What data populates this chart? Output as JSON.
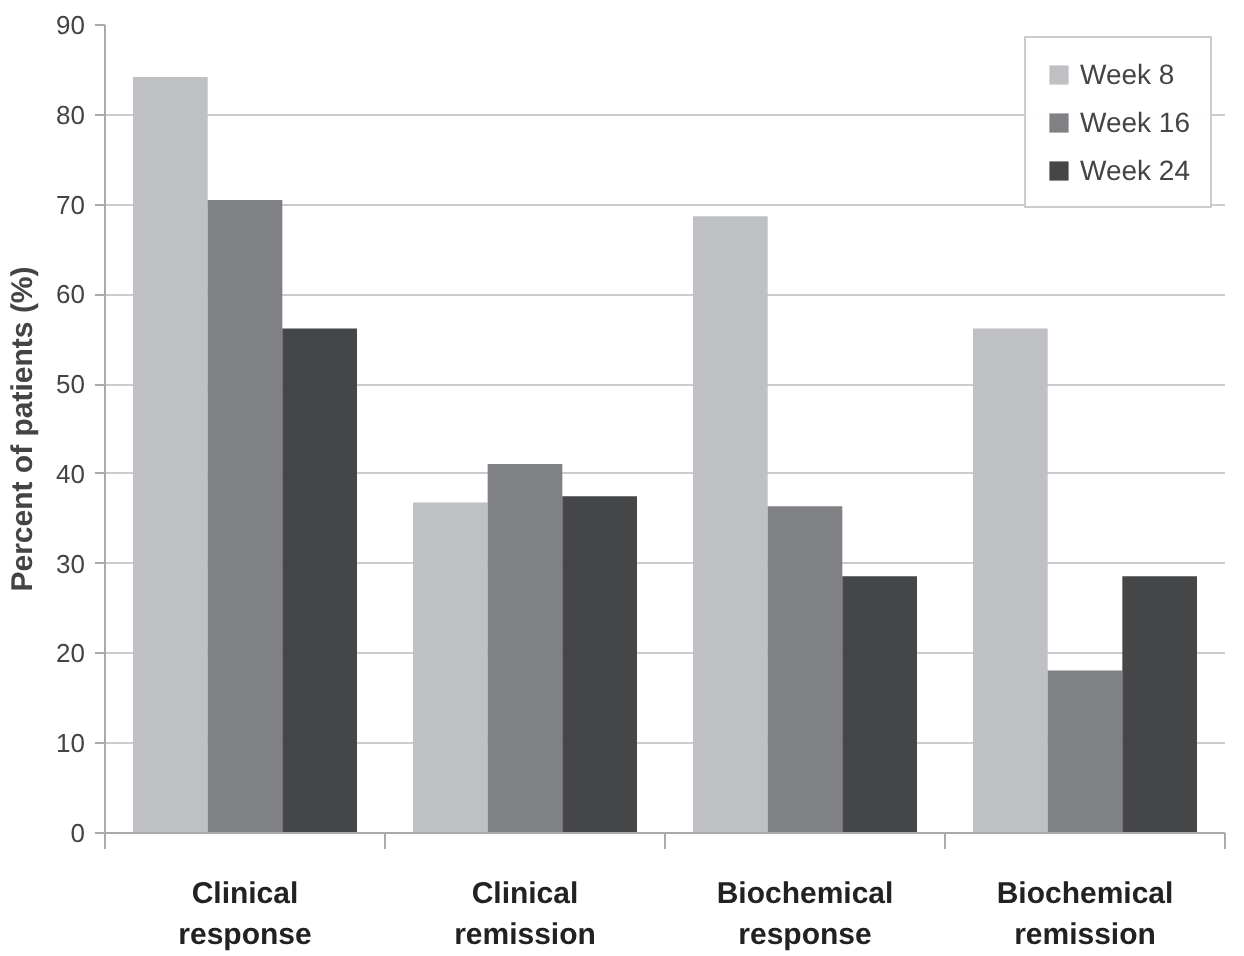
{
  "chart_data": {
    "type": "bar",
    "ylabel": "Percent of patients (%)",
    "categories": [
      "Clinical\nresponse",
      "Clinical\nremission",
      "Biochemical\nresponse",
      "Biochemical\nremission"
    ],
    "series": [
      {
        "name": "Week 8",
        "color": "#bfc0c4",
        "values": [
          84.2,
          36.8,
          68.7,
          56.2
        ]
      },
      {
        "name": "Week 16",
        "color": "#808184",
        "values": [
          70.5,
          41.1,
          36.4,
          18.1
        ]
      },
      {
        "name": "Week 24",
        "color": "#454648",
        "values": [
          56.2,
          37.5,
          28.6,
          28.6
        ]
      }
    ],
    "ylim": [
      0,
      90
    ],
    "yticks": [
      0,
      10,
      20,
      30,
      40,
      50,
      60,
      70,
      80,
      90
    ],
    "grid": "y",
    "legend": "top right"
  }
}
